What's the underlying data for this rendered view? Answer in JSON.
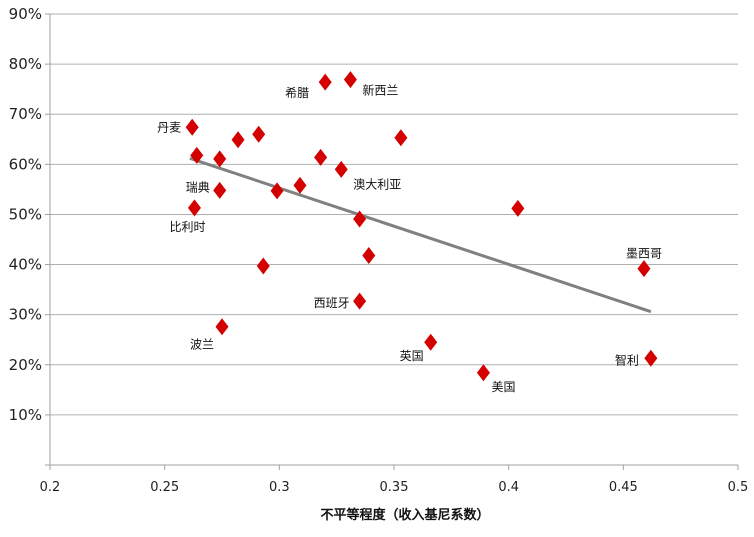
{
  "chart_data": {
    "type": "scatter",
    "title": "",
    "xlabel": "不平等程度（收入基尼系数）",
    "ylabel": "",
    "xlim": [
      0.2,
      0.5
    ],
    "ylim": [
      0,
      0.9
    ],
    "x_ticks": [
      0.2,
      0.25,
      0.3,
      0.35,
      0.4,
      0.45,
      0.5
    ],
    "x_tick_labels": [
      "0.2",
      "0.25",
      "0.3",
      "0.35",
      "0.4",
      "0.45",
      "0.5"
    ],
    "y_ticks": [
      0.1,
      0.2,
      0.3,
      0.4,
      0.5,
      0.6,
      0.7,
      0.8,
      0.9
    ],
    "y_tick_labels": [
      "10%",
      "20%",
      "30%",
      "40%",
      "50%",
      "60%",
      "70%",
      "80%",
      "90%"
    ],
    "grid": true,
    "marker_color": "#d40000",
    "trendline_color": "#808080",
    "trendline": {
      "x": [
        0.261,
        0.462
      ],
      "y": [
        0.612,
        0.306
      ]
    },
    "points": [
      {
        "x": 0.262,
        "y": 0.674,
        "label": "丹麦"
      },
      {
        "x": 0.264,
        "y": 0.618,
        "label": ""
      },
      {
        "x": 0.274,
        "y": 0.611,
        "label": ""
      },
      {
        "x": 0.282,
        "y": 0.649,
        "label": ""
      },
      {
        "x": 0.291,
        "y": 0.66,
        "label": ""
      },
      {
        "x": 0.274,
        "y": 0.548,
        "label": "瑞典"
      },
      {
        "x": 0.263,
        "y": 0.513,
        "label": "比利时"
      },
      {
        "x": 0.299,
        "y": 0.547,
        "label": ""
      },
      {
        "x": 0.309,
        "y": 0.558,
        "label": ""
      },
      {
        "x": 0.318,
        "y": 0.614,
        "label": ""
      },
      {
        "x": 0.327,
        "y": 0.59,
        "label": "澳大利亚"
      },
      {
        "x": 0.32,
        "y": 0.764,
        "label": "希腊"
      },
      {
        "x": 0.331,
        "y": 0.769,
        "label": "新西兰"
      },
      {
        "x": 0.353,
        "y": 0.653,
        "label": ""
      },
      {
        "x": 0.335,
        "y": 0.491,
        "label": ""
      },
      {
        "x": 0.339,
        "y": 0.418,
        "label": ""
      },
      {
        "x": 0.293,
        "y": 0.397,
        "label": ""
      },
      {
        "x": 0.335,
        "y": 0.327,
        "label": "西班牙"
      },
      {
        "x": 0.275,
        "y": 0.276,
        "label": "波兰"
      },
      {
        "x": 0.366,
        "y": 0.245,
        "label": "英国"
      },
      {
        "x": 0.389,
        "y": 0.184,
        "label": "美国"
      },
      {
        "x": 0.404,
        "y": 0.512,
        "label": ""
      },
      {
        "x": 0.459,
        "y": 0.392,
        "label": "墨西哥"
      },
      {
        "x": 0.462,
        "y": 0.213,
        "label": "智利"
      }
    ]
  }
}
